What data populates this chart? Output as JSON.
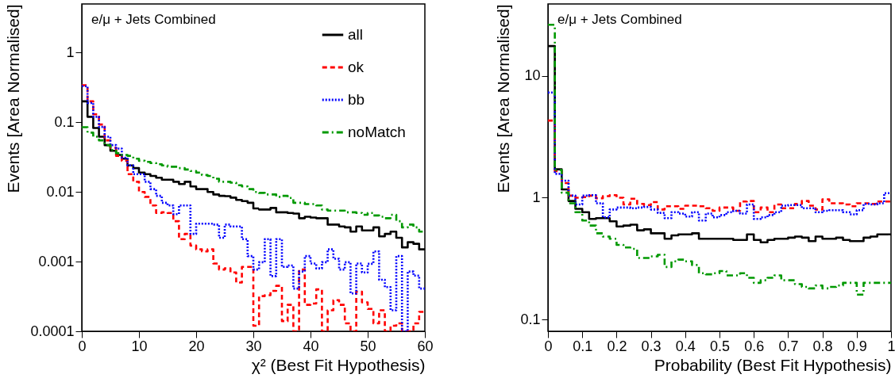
{
  "chart_data": [
    {
      "type": "histogram",
      "xlabel": "χ² (Best Fit Hypothesis)",
      "ylabel": "Events [Area Normalised]",
      "annotations": [
        "e/μ + Jets Combined"
      ],
      "log": true,
      "legend": "top right",
      "xlim": [
        0,
        60
      ],
      "xticks": [
        0,
        10,
        20,
        30,
        40,
        50,
        60
      ],
      "ylim": [
        0.0001,
        5
      ],
      "yticks": [
        0.0001,
        0.001,
        0.01,
        0.1,
        1
      ],
      "bins": [
        0,
        1,
        2,
        3,
        4,
        5,
        6,
        7,
        8,
        9,
        10,
        11,
        12,
        13,
        14,
        15,
        16,
        17,
        18,
        19,
        20,
        21,
        22,
        23,
        24,
        25,
        26,
        27,
        28,
        29,
        30,
        31,
        32,
        33,
        34,
        35,
        36,
        37,
        38,
        39,
        40,
        41,
        42,
        43,
        44,
        45,
        46,
        47,
        48,
        49,
        50,
        51,
        52,
        53,
        54,
        55,
        56,
        57,
        58,
        59,
        60
      ],
      "series": [
        {
          "name": "all",
          "color": "#000000",
          "line_style": "solid",
          "values": [
            0.2,
            0.12,
            0.083,
            0.062,
            0.047,
            0.039,
            0.034,
            0.03,
            0.024,
            0.022,
            0.019,
            0.018,
            0.017,
            0.016,
            0.015,
            0.015,
            0.014,
            0.013,
            0.014,
            0.012,
            0.011,
            0.011,
            0.01,
            0.0092,
            0.0088,
            0.0087,
            0.0083,
            0.0077,
            0.0074,
            0.007,
            0.0058,
            0.0056,
            0.0056,
            0.0059,
            0.0051,
            0.0051,
            0.005,
            0.0049,
            0.0042,
            0.0044,
            0.0043,
            0.0042,
            0.0042,
            0.0034,
            0.0034,
            0.0032,
            0.0031,
            0.0027,
            0.0032,
            0.0028,
            0.0028,
            0.0031,
            0.0023,
            0.0025,
            0.0027,
            0.0022,
            0.0016,
            0.0019,
            0.0018,
            0.0015
          ]
        },
        {
          "name": "ok",
          "color": "#ff0000",
          "line_style": "dashed",
          "values": [
            0.34,
            0.2,
            0.13,
            0.093,
            0.055,
            0.043,
            0.033,
            0.028,
            0.018,
            0.014,
            0.01,
            0.0085,
            0.0064,
            0.005,
            0.0051,
            0.005,
            0.0038,
            0.0021,
            0.0025,
            0.0017,
            0.0015,
            0.0014,
            0.0015,
            0.00094,
            0.00077,
            0.0008,
            0.0007,
            0.0005,
            0.00084,
            0.00084,
            0.00012,
            0.00032,
            0.00033,
            0.00038,
            0.00045,
            0.00014,
            0.00024,
            0.0001,
            0.00077,
            0.00024,
            0.00025,
            0.0004,
            0.0001,
            0.0002,
            0.00028,
            0.00024,
            0.00013,
            0.0001,
            0.00037,
            0.00026,
            0.00021,
            0.00013,
            0.0002,
            0.0001,
            0.00012,
            0.00013,
            0.0001,
            0.0001,
            0.00013,
            0.00019
          ]
        },
        {
          "name": "bb",
          "color": "#0000ff",
          "line_style": "dotted",
          "values": [
            0.33,
            0.19,
            0.12,
            0.086,
            0.062,
            0.047,
            0.042,
            0.031,
            0.024,
            0.018,
            0.018,
            0.014,
            0.011,
            0.0088,
            0.007,
            0.0064,
            0.0048,
            0.0064,
            0.0064,
            0.0025,
            0.0035,
            0.0035,
            0.0035,
            0.0034,
            0.0022,
            0.0034,
            0.0032,
            0.0032,
            0.0021,
            0.0012,
            0.00077,
            0.00098,
            0.0021,
            0.00062,
            0.0021,
            0.00084,
            0.00088,
            0.00041,
            0.00072,
            0.0012,
            0.00094,
            0.0008,
            0.00098,
            0.0015,
            0.0011,
            0.00077,
            0.00098,
            0.00035,
            0.00094,
            0.0007,
            0.00093,
            0.0014,
            0.00055,
            0.00043,
            0.0002,
            0.0012,
            0.0001,
            0.00072,
            0.00063,
            0.00041
          ]
        },
        {
          "name": "noMatch",
          "color": "#009900",
          "line_style": "dashdot",
          "values": [
            0.085,
            0.071,
            0.062,
            0.055,
            0.047,
            0.04,
            0.036,
            0.034,
            0.033,
            0.03,
            0.028,
            0.027,
            0.026,
            0.025,
            0.024,
            0.023,
            0.023,
            0.022,
            0.021,
            0.02,
            0.019,
            0.0175,
            0.017,
            0.0155,
            0.014,
            0.014,
            0.0136,
            0.0125,
            0.012,
            0.011,
            0.01,
            0.0097,
            0.0092,
            0.0092,
            0.0085,
            0.0088,
            0.0082,
            0.007,
            0.007,
            0.0067,
            0.0067,
            0.0064,
            0.0056,
            0.0054,
            0.0054,
            0.0054,
            0.0051,
            0.0051,
            0.005,
            0.0047,
            0.005,
            0.0046,
            0.0044,
            0.0042,
            0.0047,
            0.0038,
            0.0031,
            0.0034,
            0.0031,
            0.0027
          ]
        }
      ]
    },
    {
      "type": "histogram",
      "xlabel": "Probability (Best Fit Hypothesis)",
      "ylabel": "Events [Area Normalised]",
      "annotations": [
        "e/μ + Jets Combined"
      ],
      "log": true,
      "xlim": [
        0,
        1
      ],
      "xticks": [
        0,
        0.1,
        0.2,
        0.3,
        0.4,
        0.5,
        0.6,
        0.7,
        0.8,
        0.9,
        1
      ],
      "ylim": [
        0.08,
        39
      ],
      "yticks": [
        0.1,
        1,
        10
      ],
      "bins": [
        0,
        0.02,
        0.04,
        0.06,
        0.08,
        0.1,
        0.12,
        0.14,
        0.16,
        0.18,
        0.2,
        0.22,
        0.24,
        0.26,
        0.28,
        0.3,
        0.32,
        0.34,
        0.36,
        0.38,
        0.4,
        0.42,
        0.44,
        0.46,
        0.48,
        0.5,
        0.52,
        0.54,
        0.56,
        0.58,
        0.6,
        0.62,
        0.64,
        0.66,
        0.68,
        0.7,
        0.72,
        0.74,
        0.76,
        0.78,
        0.8,
        0.82,
        0.84,
        0.86,
        0.88,
        0.9,
        0.92,
        0.94,
        0.96,
        0.98,
        1
      ],
      "series": [
        {
          "color": "#000000",
          "line_style": "solid",
          "values": [
            17.6,
            1.71,
            1.17,
            0.94,
            0.81,
            0.76,
            0.67,
            0.68,
            0.68,
            0.64,
            0.58,
            0.59,
            0.6,
            0.54,
            0.55,
            0.51,
            0.51,
            0.46,
            0.49,
            0.5,
            0.5,
            0.51,
            0.46,
            0.46,
            0.46,
            0.46,
            0.46,
            0.45,
            0.45,
            0.5,
            0.45,
            0.43,
            0.45,
            0.46,
            0.46,
            0.47,
            0.48,
            0.47,
            0.44,
            0.48,
            0.46,
            0.46,
            0.47,
            0.45,
            0.44,
            0.44,
            0.47,
            0.48,
            0.5,
            0.5
          ]
        },
        {
          "color": "#ff0000",
          "line_style": "dashed",
          "values": [
            4.3,
            1.65,
            1.32,
            1.04,
            1.0,
            1.01,
            1.04,
            0.99,
            1.03,
            1.05,
            1.0,
            0.88,
            0.98,
            0.89,
            0.87,
            0.92,
            0.8,
            0.85,
            0.85,
            0.81,
            0.86,
            0.86,
            0.85,
            0.82,
            0.78,
            0.83,
            0.83,
            0.78,
            0.93,
            0.94,
            0.76,
            0.83,
            0.76,
            0.88,
            0.82,
            0.82,
            0.89,
            0.94,
            0.86,
            0.8,
            0.97,
            0.9,
            0.9,
            0.88,
            0.85,
            0.9,
            0.9,
            0.89,
            0.93,
            0.93
          ]
        },
        {
          "color": "#0000ff",
          "line_style": "dotted",
          "values": [
            7.3,
            1.57,
            1.38,
            1.04,
            0.88,
            1.04,
            1.05,
            0.9,
            0.69,
            0.8,
            0.83,
            0.83,
            0.82,
            0.83,
            0.84,
            0.8,
            0.75,
            0.68,
            0.76,
            0.74,
            0.7,
            0.76,
            0.65,
            0.74,
            0.69,
            0.72,
            0.76,
            0.78,
            0.74,
            0.88,
            0.67,
            0.69,
            0.72,
            0.76,
            0.86,
            0.87,
            0.87,
            0.82,
            0.82,
            0.76,
            0.78,
            0.79,
            0.79,
            0.76,
            0.73,
            0.79,
            0.89,
            0.88,
            0.9,
            1.09
          ]
        },
        {
          "color": "#009900",
          "line_style": "dashdot",
          "values": [
            26.3,
            1.69,
            1.1,
            0.9,
            0.76,
            0.65,
            0.59,
            0.51,
            0.48,
            0.46,
            0.41,
            0.39,
            0.38,
            0.32,
            0.32,
            0.33,
            0.34,
            0.27,
            0.3,
            0.31,
            0.3,
            0.28,
            0.24,
            0.235,
            0.24,
            0.25,
            0.23,
            0.23,
            0.24,
            0.22,
            0.2,
            0.21,
            0.22,
            0.23,
            0.21,
            0.21,
            0.195,
            0.185,
            0.18,
            0.19,
            0.18,
            0.185,
            0.19,
            0.2,
            0.2,
            0.16,
            0.2,
            0.2,
            0.2,
            0.2
          ]
        }
      ]
    }
  ]
}
